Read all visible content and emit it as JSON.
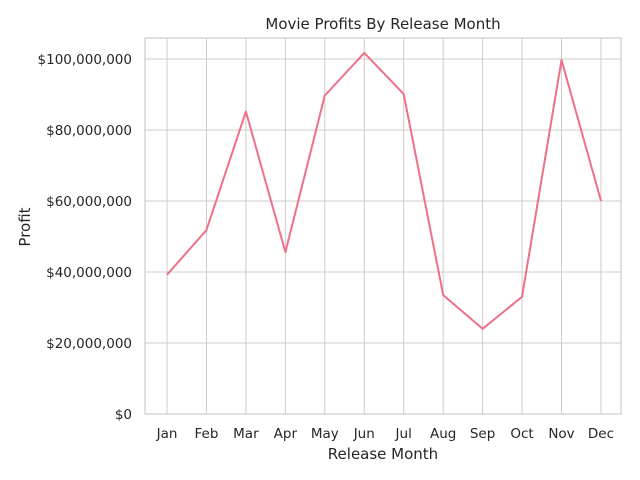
{
  "chart_data": {
    "type": "line",
    "title": "Movie Profits By Release Month",
    "xlabel": "Release Month",
    "ylabel": "Profit",
    "categories": [
      "Jan",
      "Feb",
      "Mar",
      "Apr",
      "May",
      "Jun",
      "Jul",
      "Aug",
      "Sep",
      "Oct",
      "Nov",
      "Dec"
    ],
    "series": [
      {
        "values": [
          39200000,
          51800000,
          85200000,
          45600000,
          89700000,
          101700000,
          90100000,
          33500000,
          24000000,
          33000000,
          99700000,
          60000000
        ],
        "color": "#f07089"
      }
    ],
    "ylim": [
      0,
      105900000
    ],
    "yticks": [
      0,
      20000000,
      40000000,
      60000000,
      80000000,
      100000000
    ],
    "ytick_labels": [
      "$0",
      "$20,000,000",
      "$40,000,000",
      "$60,000,000",
      "$80,000,000",
      "$100,000,000"
    ],
    "grid": true,
    "legend": "none"
  }
}
